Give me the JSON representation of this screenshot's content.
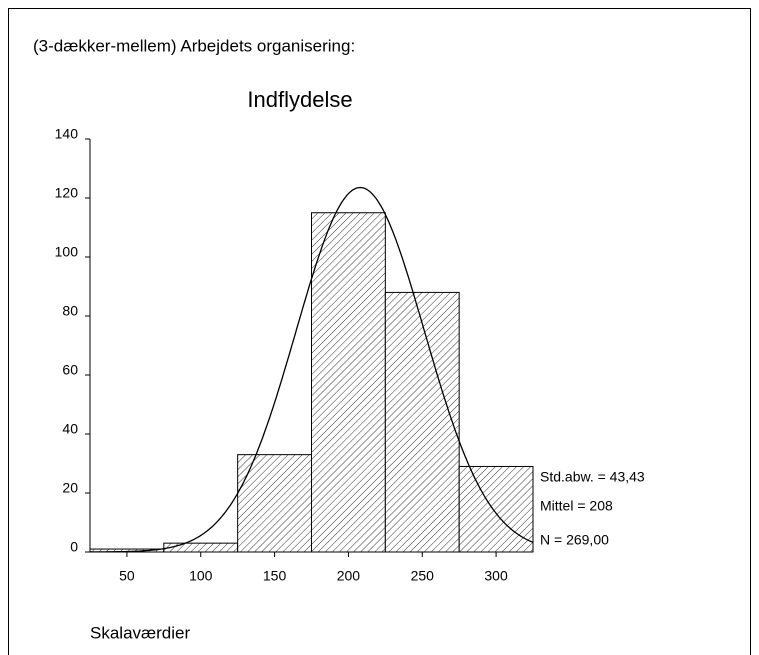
{
  "chart_data": {
    "type": "histogram",
    "header": "(3-dækker-mellem) Arbejdets organisering:",
    "title": "Indflydelse",
    "x_label": "Skalaværdier",
    "bins": [
      25,
      75,
      125,
      175,
      225,
      275,
      325
    ],
    "values": [
      1,
      3,
      33,
      115,
      88,
      29
    ],
    "color": "#ffffff",
    "xlim": [
      25,
      325
    ],
    "xticks": [
      50,
      100,
      150,
      200,
      250,
      300
    ],
    "ylim": [
      0,
      140
    ],
    "yticks": [
      0,
      20,
      40,
      60,
      80,
      100,
      120,
      140
    ],
    "stats": {
      "std": {
        "value": 43.43,
        "label": "Std.abw. = 43,43"
      },
      "mean": {
        "value": 208,
        "label": "Mittel = 208"
      },
      "n": {
        "value": 269,
        "label": "N = 269,00"
      }
    }
  }
}
